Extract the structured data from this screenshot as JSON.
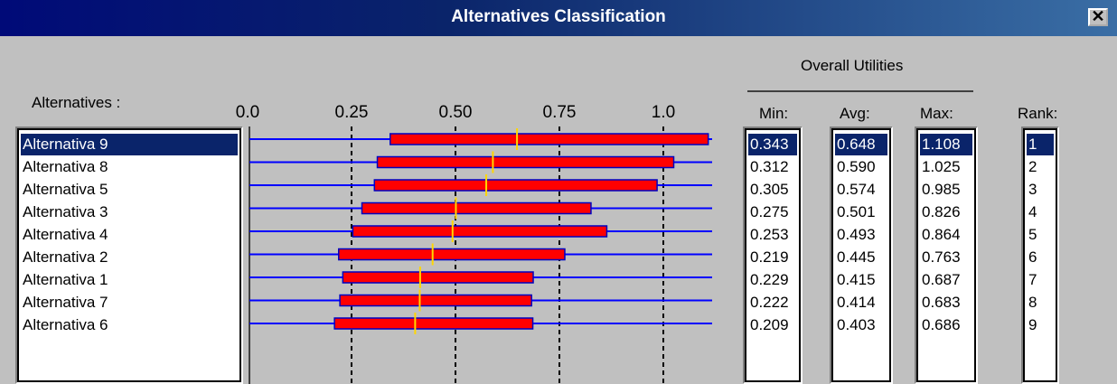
{
  "window": {
    "title": "Alternatives Classification",
    "close_label": "✕"
  },
  "labels": {
    "alternatives": "Alternatives :",
    "overall_utilities": "Overall Utilities",
    "min": "Min:",
    "avg": "Avg:",
    "max": "Max:",
    "rank": "Rank:"
  },
  "axis_ticks": [
    "0.0",
    "0.25",
    "0.50",
    "0.75",
    "1.0"
  ],
  "alternatives": [
    {
      "name": "Alternativa 9",
      "min": "0.343",
      "avg": "0.648",
      "max": "1.108",
      "rank": "1"
    },
    {
      "name": "Alternativa 8",
      "min": "0.312",
      "avg": "0.590",
      "max": "1.025",
      "rank": "2"
    },
    {
      "name": "Alternativa 5",
      "min": "0.305",
      "avg": "0.574",
      "max": "0.985",
      "rank": "3"
    },
    {
      "name": "Alternativa 3",
      "min": "0.275",
      "avg": "0.501",
      "max": "0.826",
      "rank": "4"
    },
    {
      "name": "Alternativa 4",
      "min": "0.253",
      "avg": "0.493",
      "max": "0.864",
      "rank": "5"
    },
    {
      "name": "Alternativa 2",
      "min": "0.219",
      "avg": "0.445",
      "max": "0.763",
      "rank": "6"
    },
    {
      "name": "Alternativa 1",
      "min": "0.229",
      "avg": "0.415",
      "max": "0.687",
      "rank": "7"
    },
    {
      "name": "Alternativa 7",
      "min": "0.222",
      "avg": "0.414",
      "max": "0.683",
      "rank": "8"
    },
    {
      "name": "Alternativa 6",
      "min": "0.209",
      "avg": "0.403",
      "max": "0.686",
      "rank": "9"
    }
  ],
  "selected_index": 0,
  "chart_data": {
    "type": "range-bar",
    "xlim": [
      0.0,
      1.1
    ],
    "ticks": [
      0.0,
      0.25,
      0.5,
      0.75,
      1.0
    ],
    "grid": "dashed vertical at ticks",
    "colors": {
      "bar": "#ff0000",
      "bar_border": "#0000c0",
      "avg_marker": "#ffd700",
      "line": "#0000ff"
    }
  }
}
